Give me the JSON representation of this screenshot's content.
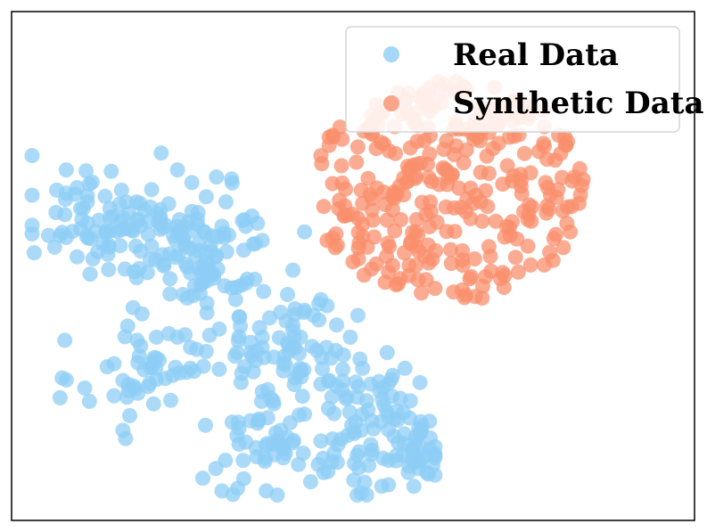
{
  "chart_data": {
    "type": "scatter",
    "title": "",
    "xlabel": "",
    "ylabel": "",
    "axes_ticks": false,
    "grid": false,
    "legend_position": "top-right",
    "xlim": [
      0,
      100
    ],
    "ylim": [
      0,
      100
    ],
    "series": [
      {
        "name": "Real Data",
        "color": "#8ecdf6",
        "points": []
      },
      {
        "name": "Synthetic Data",
        "color": "#f98f6c",
        "points": []
      }
    ]
  }
}
